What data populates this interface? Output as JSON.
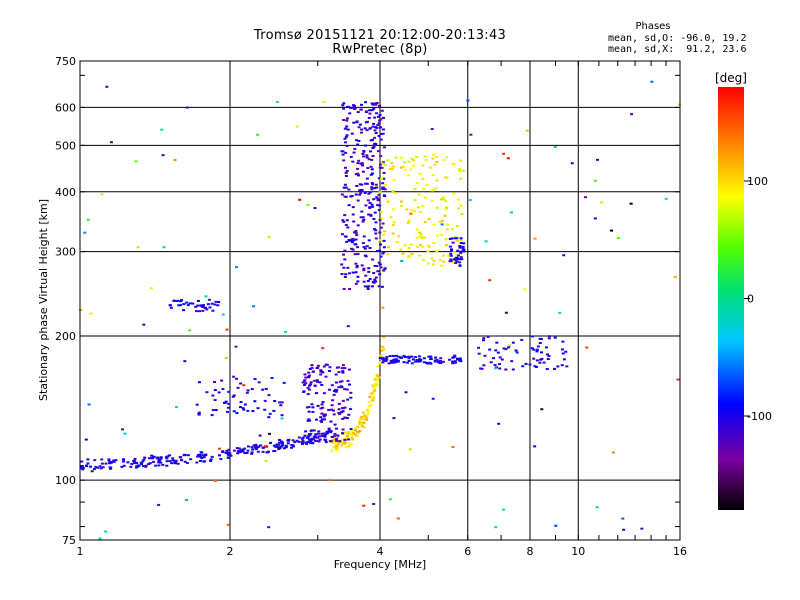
{
  "chart_data": {
    "type": "scatter",
    "title": "Tromsø 20151121 20:12:00-20:13:43",
    "subtitle": "RwPretec (8p)",
    "xlabel": "Frequency [MHz]",
    "ylabel": "Stationary phase Virtual Height [km]",
    "x_scale": "log",
    "y_scale": "log",
    "xlim": [
      1,
      16
    ],
    "ylim": [
      75,
      750
    ],
    "x_ticks": [
      1,
      2,
      4,
      6,
      8,
      10,
      16
    ],
    "y_ticks": [
      75,
      100,
      200,
      300,
      400,
      500,
      600,
      750
    ],
    "grid": true,
    "colorbar": {
      "label": "[deg]",
      "range": [
        -180,
        180
      ],
      "ticks": [
        100,
        0,
        -100
      ],
      "colors": [
        "#000000",
        "#7a00a0",
        "#0000ff",
        "#00c8ff",
        "#00e070",
        "#50ff00",
        "#ffff00",
        "#ff8000",
        "#ff0000"
      ]
    },
    "phases": {
      "header": "Phases",
      "o_line": "mean, sd,O: -96.0, 19.2",
      "x_line": "mean, sd,X:  91.2, 23.6"
    },
    "clusters": [
      {
        "f": [
          1.0,
          3.2
        ],
        "h": [
          108,
          125
        ],
        "phase": -100,
        "n": 260,
        "shape": "curve"
      },
      {
        "f": [
          3.2,
          4.1
        ],
        "h": [
          120,
          200
        ],
        "phase": 100,
        "n": 140,
        "shape": "rise"
      },
      {
        "f": [
          2.8,
          3.5
        ],
        "h": [
          120,
          175
        ],
        "phase": -110,
        "n": 160,
        "shape": "box"
      },
      {
        "f": [
          3.35,
          4.1
        ],
        "h": [
          250,
          620
        ],
        "phase": -110,
        "n": 320,
        "shape": "box"
      },
      {
        "f": [
          4.0,
          5.9
        ],
        "h": [
          280,
          480
        ],
        "phase": 90,
        "n": 160,
        "shape": "box"
      },
      {
        "f": [
          4.0,
          5.9
        ],
        "h": [
          175,
          182
        ],
        "phase": -100,
        "n": 90,
        "shape": "box"
      },
      {
        "f": [
          5.5,
          5.9
        ],
        "h": [
          280,
          320
        ],
        "phase": -100,
        "n": 40,
        "shape": "box"
      },
      {
        "f": [
          1.5,
          1.9
        ],
        "h": [
          225,
          238
        ],
        "phase": -100,
        "n": 40,
        "shape": "box"
      },
      {
        "f": [
          1.7,
          2.6
        ],
        "h": [
          135,
          165
        ],
        "phase": -100,
        "n": 60,
        "shape": "box"
      },
      {
        "f": [
          6.3,
          9.5
        ],
        "h": [
          170,
          200
        ],
        "phase": -100,
        "n": 70,
        "shape": "box"
      },
      {
        "f": [
          1.0,
          16.0
        ],
        "h": [
          75,
          700
        ],
        "phase": 0,
        "n": 120,
        "shape": "scatter"
      }
    ]
  }
}
